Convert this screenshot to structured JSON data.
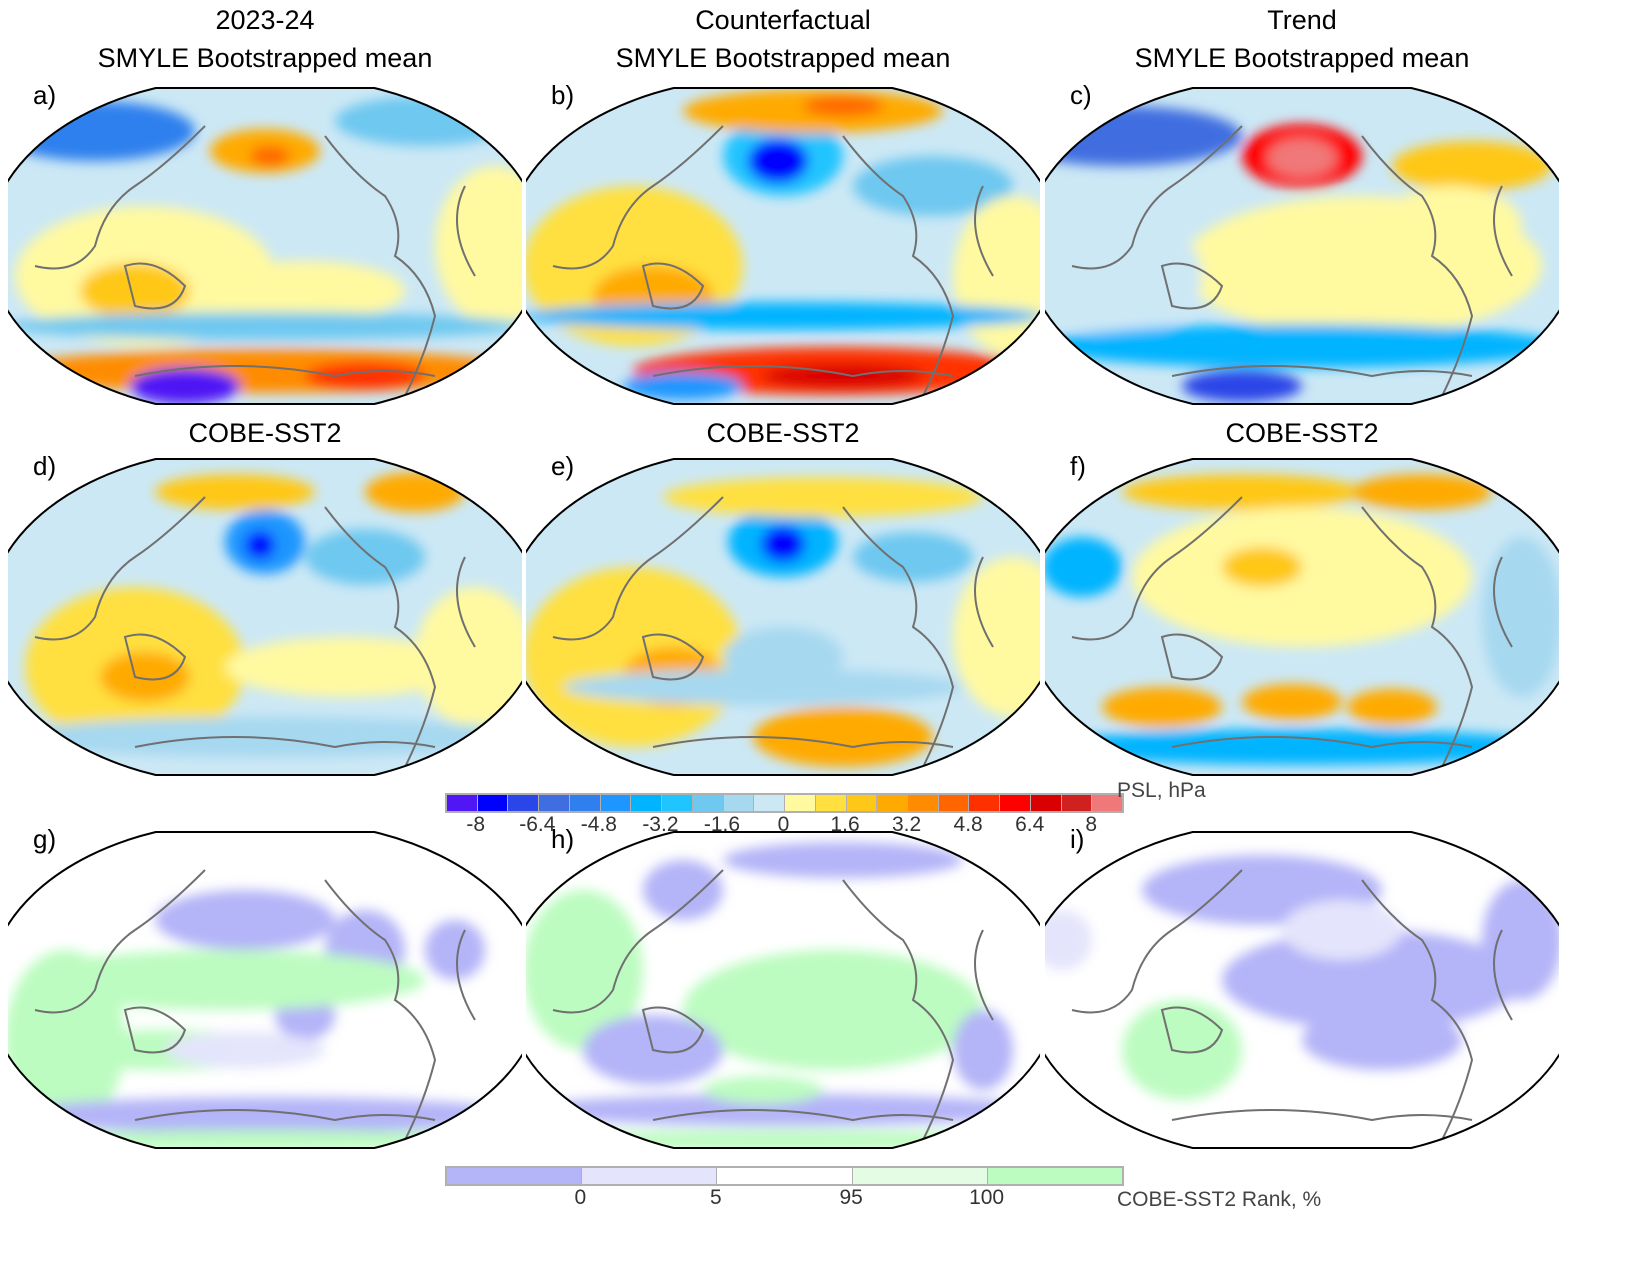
{
  "columns": [
    {
      "title": "2023-24",
      "subtitle": "SMYLE Bootstrapped mean"
    },
    {
      "title": "Counterfactual",
      "subtitle": "SMYLE Bootstrapped mean"
    },
    {
      "title": "Trend",
      "subtitle": "SMYLE Bootstrapped mean"
    }
  ],
  "row2_titles": [
    "COBE-SST2",
    "COBE-SST2",
    "COBE-SST2"
  ],
  "panel_labels": [
    "a)",
    "b)",
    "c)",
    "d)",
    "e)",
    "f)",
    "g)",
    "h)",
    "i)"
  ],
  "psl_colorbar": {
    "title": "PSL, hPa",
    "colors": [
      "#5016f5",
      "#0000ff",
      "#2a45e8",
      "#3f6ee0",
      "#2f80ee",
      "#1e96ff",
      "#00b4ff",
      "#20c4ff",
      "#6ec8f0",
      "#a6d8f0",
      "#cce8f5",
      "#fff9a0",
      "#ffe040",
      "#ffc818",
      "#ffaa00",
      "#ff8c00",
      "#ff6600",
      "#ff3000",
      "#ff0000",
      "#d80000",
      "#d02020",
      "#f07878"
    ],
    "tick_labels": [
      "-8",
      "-6.4",
      "-4.8",
      "-3.2",
      "-1.6",
      "0",
      "1.6",
      "3.2",
      "4.8",
      "6.4",
      "8"
    ],
    "levels_min": -8,
    "levels_max": 8,
    "level_step": 0.8
  },
  "rank_colorbar": {
    "title": "COBE-SST2 Rank, %",
    "colors": [
      "#b4b4f8",
      "#e4e4fc",
      "#ffffff",
      "#e4fce4",
      "#bcfcc0"
    ],
    "tick_labels": [
      "0",
      "5",
      "95",
      "100"
    ]
  }
}
